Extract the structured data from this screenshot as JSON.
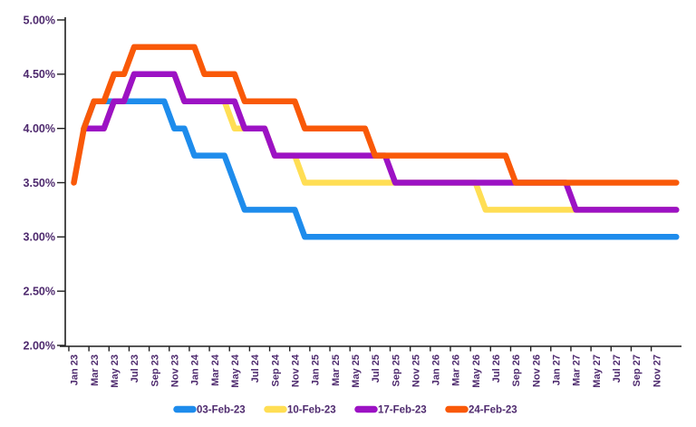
{
  "chart_data": {
    "type": "line",
    "title": "",
    "grid": false,
    "legend_position": "bottom",
    "axis_text_color": "#4E2A6E",
    "axis_line_color": "#1f1f1f",
    "y_axis": {
      "min": 2.0,
      "max": 5.0,
      "step": 0.5,
      "format": "percent",
      "tick_labels": [
        "5.00%",
        "4.50%",
        "4.00%",
        "3.50%",
        "3.00%",
        "2.50%",
        "2.00%"
      ]
    },
    "x_tick_labels": [
      "Jan 23",
      "Mar 23",
      "May 23",
      "Jul 23",
      "Sep 23",
      "Nov 23",
      "Jan 24",
      "Mar 24",
      "May 24",
      "Jul 24",
      "Sep 24",
      "Nov 24",
      "Jan 25",
      "Mar 25",
      "May 25",
      "Jul 25",
      "Sep 25",
      "Nov 25",
      "Jan 26",
      "Mar 26",
      "May 26",
      "Jul 26",
      "Sep 26",
      "Nov 26",
      "Jan 27",
      "Mar 27",
      "May 27",
      "Jul 27",
      "Sep 27",
      "Nov 27"
    ],
    "months": [
      "Jan-23",
      "Feb-23",
      "Mar-23",
      "Apr-23",
      "May-23",
      "Jun-23",
      "Jul-23",
      "Aug-23",
      "Sep-23",
      "Oct-23",
      "Nov-23",
      "Dec-23",
      "Jan-24",
      "Feb-24",
      "Mar-24",
      "Apr-24",
      "May-24",
      "Jun-24",
      "Jul-24",
      "Aug-24",
      "Sep-24",
      "Oct-24",
      "Nov-24",
      "Dec-24",
      "Jan-25",
      "Feb-25",
      "Mar-25",
      "Apr-25",
      "May-25",
      "Jun-25",
      "Jul-25",
      "Aug-25",
      "Sep-25",
      "Oct-25",
      "Nov-25",
      "Dec-25",
      "Jan-26",
      "Feb-26",
      "Mar-26",
      "Apr-26",
      "May-26",
      "Jun-26",
      "Jul-26",
      "Aug-26",
      "Sep-26",
      "Oct-26",
      "Nov-26",
      "Dec-26",
      "Jan-27",
      "Feb-27",
      "Mar-27",
      "Apr-27",
      "May-27",
      "Jun-27",
      "Jul-27",
      "Aug-27",
      "Sep-27",
      "Oct-27",
      "Nov-27",
      "Dec-27",
      "Jan-28"
    ],
    "series": [
      {
        "name": "03-Feb-23",
        "color": "#1E8CEC",
        "values": [
          null,
          4,
          4.25,
          4.25,
          4.25,
          4.25,
          4.25,
          4.25,
          4.25,
          4.25,
          4,
          4,
          3.75,
          3.75,
          3.75,
          3.75,
          3.5,
          3.25,
          3.25,
          3.25,
          3.25,
          3.25,
          3.25,
          3,
          3,
          3,
          3,
          3,
          3,
          3,
          3,
          3,
          3,
          3,
          3,
          3,
          3,
          3,
          3,
          3,
          3,
          3,
          3,
          3,
          3,
          3,
          3,
          3,
          3,
          3,
          3,
          3,
          3,
          3,
          3,
          3,
          3,
          3,
          3,
          3,
          3
        ]
      },
      {
        "name": "10-Feb-23",
        "color": "#FFDE54",
        "values": [
          null,
          4,
          4,
          4,
          4.25,
          4.25,
          4.5,
          4.5,
          4.5,
          4.5,
          4.5,
          4.25,
          4.25,
          4.25,
          4.25,
          4.25,
          4,
          4,
          4,
          4,
          3.75,
          3.75,
          3.75,
          3.5,
          3.5,
          3.5,
          3.5,
          3.5,
          3.5,
          3.5,
          3.5,
          3.5,
          3.5,
          3.5,
          3.5,
          3.5,
          3.5,
          3.5,
          3.5,
          3.5,
          3.5,
          3.25,
          3.25,
          3.25,
          3.25,
          3.25,
          3.25,
          3.25,
          3.25,
          3.25,
          3.25,
          3.25,
          3.25,
          3.25,
          3.25,
          3.25,
          3.25,
          3.25,
          3.25,
          3.25,
          3.25
        ]
      },
      {
        "name": "17-Feb-23",
        "color": "#9C12C4",
        "values": [
          null,
          4,
          4,
          4,
          4.25,
          4.25,
          4.5,
          4.5,
          4.5,
          4.5,
          4.5,
          4.25,
          4.25,
          4.25,
          4.25,
          4.25,
          4.25,
          4,
          4,
          4,
          3.75,
          3.75,
          3.75,
          3.75,
          3.75,
          3.75,
          3.75,
          3.75,
          3.75,
          3.75,
          3.75,
          3.75,
          3.5,
          3.5,
          3.5,
          3.5,
          3.5,
          3.5,
          3.5,
          3.5,
          3.5,
          3.5,
          3.5,
          3.5,
          3.5,
          3.5,
          3.5,
          3.5,
          3.5,
          3.5,
          3.25,
          3.25,
          3.25,
          3.25,
          3.25,
          3.25,
          3.25,
          3.25,
          3.25,
          3.25,
          3.25
        ]
      },
      {
        "name": "24-Feb-23",
        "color": "#F95908",
        "values": [
          3.5,
          4,
          4.25,
          4.25,
          4.5,
          4.5,
          4.75,
          4.75,
          4.75,
          4.75,
          4.75,
          4.75,
          4.75,
          4.5,
          4.5,
          4.5,
          4.5,
          4.25,
          4.25,
          4.25,
          4.25,
          4.25,
          4.25,
          4,
          4,
          4,
          4,
          4,
          4,
          4,
          3.75,
          3.75,
          3.75,
          3.75,
          3.75,
          3.75,
          3.75,
          3.75,
          3.75,
          3.75,
          3.75,
          3.75,
          3.75,
          3.75,
          3.5,
          3.5,
          3.5,
          3.5,
          3.5,
          3.5,
          3.5,
          3.5,
          3.5,
          3.5,
          3.5,
          3.5,
          3.5,
          3.5,
          3.5,
          3.5,
          3.5
        ]
      }
    ],
    "legend_entries": [
      "03-Feb-23",
      "10-Feb-23",
      "17-Feb-23",
      "24-Feb-23"
    ]
  }
}
